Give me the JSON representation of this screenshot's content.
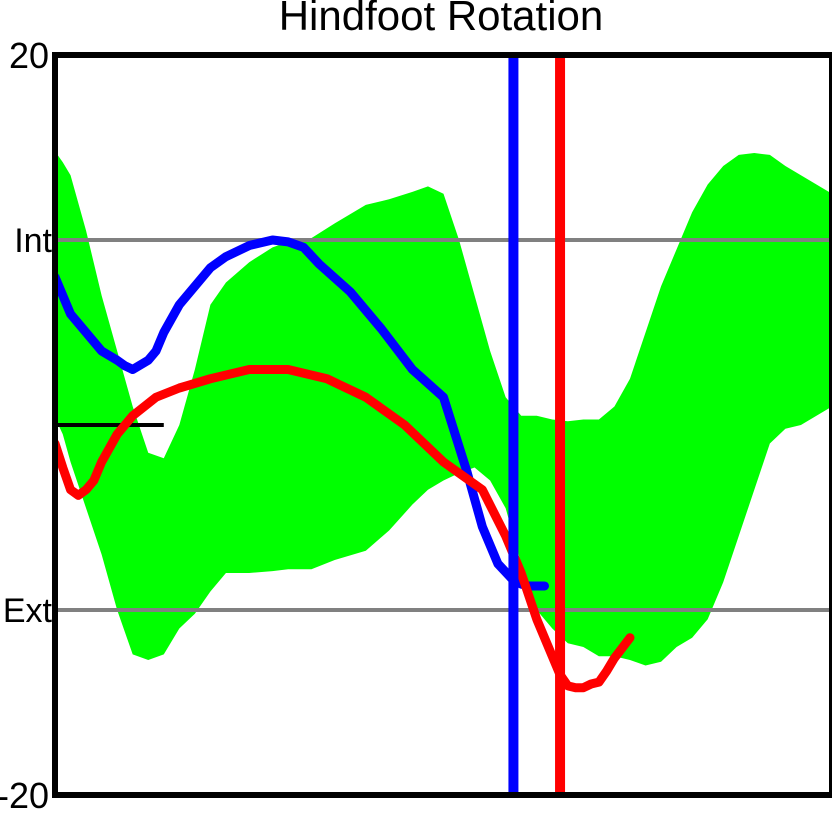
{
  "chart_data": {
    "type": "line",
    "title": "Hindfoot Rotation",
    "xlabel": "",
    "ylabel": "",
    "xlim": [
      0,
      100
    ],
    "ylim": [
      -20,
      20
    ],
    "y_ticks": [
      {
        "value": 20,
        "label": "20"
      },
      {
        "value": -20,
        "label": "-20"
      }
    ],
    "direction_labels": [
      {
        "value": 10,
        "label": "Int"
      },
      {
        "value": -10,
        "label": "Ext"
      }
    ],
    "reference_lines": [
      {
        "value": 10,
        "color": "#808080"
      },
      {
        "value": -10,
        "color": "#808080"
      }
    ],
    "zero_line": {
      "value": 0,
      "x_range": [
        0,
        14
      ],
      "color": "#000000"
    },
    "normal_band": {
      "color": "#00ff00",
      "x": [
        0,
        1,
        2,
        4,
        6,
        8,
        10,
        12,
        14,
        16,
        18,
        20,
        22,
        25,
        28,
        30,
        33,
        36,
        40,
        43,
        46,
        48,
        50,
        52,
        54,
        56,
        58,
        60,
        62,
        64,
        66,
        68,
        70,
        72,
        74,
        76,
        78,
        80,
        82,
        84,
        86,
        88,
        90,
        92,
        94,
        96,
        98,
        100
      ],
      "upper": [
        14.8,
        14.2,
        13.5,
        10.5,
        7.0,
        4.0,
        1.0,
        -1.5,
        -1.8,
        0.0,
        3.0,
        6.5,
        7.7,
        8.8,
        9.6,
        9.9,
        10.1,
        10.9,
        11.9,
        12.2,
        12.6,
        12.9,
        12.5,
        10.0,
        7.0,
        4.0,
        1.5,
        0.5,
        0.5,
        0.3,
        0.2,
        0.3,
        0.3,
        1.0,
        2.5,
        5.0,
        7.5,
        9.5,
        11.5,
        13.0,
        14.0,
        14.6,
        14.7,
        14.6,
        14.0,
        13.5,
        13.0,
        12.5
      ],
      "lower": [
        0.4,
        -0.5,
        -2.0,
        -4.5,
        -7.0,
        -10.0,
        -12.4,
        -12.7,
        -12.4,
        -11.0,
        -10.2,
        -9.0,
        -8.0,
        -8.0,
        -7.9,
        -7.8,
        -7.8,
        -7.3,
        -6.8,
        -5.7,
        -4.3,
        -3.5,
        -3.0,
        -2.6,
        -2.3,
        -3.0,
        -4.5,
        -7.5,
        -10.0,
        -11.0,
        -11.8,
        -12.0,
        -12.5,
        -12.5,
        -12.7,
        -13.0,
        -12.8,
        -12.0,
        -11.5,
        -10.5,
        -8.5,
        -6.0,
        -3.5,
        -1.0,
        -0.2,
        0.0,
        0.5,
        1.0
      ]
    },
    "series": [
      {
        "color": "#0000ff",
        "x": [
          0,
          2,
          4,
          6,
          8,
          9,
          10,
          12,
          13,
          14,
          16,
          18,
          20,
          22,
          25,
          28,
          30,
          32,
          34,
          38,
          42,
          46,
          50,
          53,
          55,
          57,
          59,
          60,
          61,
          62,
          63
        ],
        "y": [
          8.0,
          6.0,
          5.0,
          4.0,
          3.5,
          3.2,
          3.0,
          3.5,
          4.0,
          5.0,
          6.5,
          7.5,
          8.5,
          9.1,
          9.7,
          10.0,
          9.9,
          9.6,
          8.7,
          7.2,
          5.2,
          3.0,
          1.5,
          -2.5,
          -5.5,
          -7.5,
          -8.4,
          -8.6,
          -8.7,
          -8.7,
          -8.7
        ]
      },
      {
        "color": "#ff0000",
        "x": [
          0,
          1,
          2,
          3,
          4,
          5,
          6,
          8,
          10,
          13,
          16,
          20,
          25,
          30,
          35,
          40,
          45,
          50,
          55,
          58,
          60,
          62,
          64,
          65,
          66,
          67,
          68,
          69,
          70,
          71,
          72,
          74
        ],
        "y": [
          -1.0,
          -2.3,
          -3.5,
          -3.8,
          -3.5,
          -3.0,
          -2.0,
          -0.5,
          0.5,
          1.5,
          2.0,
          2.5,
          3.0,
          3.0,
          2.5,
          1.5,
          0.0,
          -2.0,
          -3.5,
          -6.0,
          -8.0,
          -10.5,
          -12.5,
          -13.5,
          -14.1,
          -14.2,
          -14.2,
          -14.0,
          -13.9,
          -13.3,
          -12.6,
          -11.5
        ]
      }
    ],
    "events": [
      {
        "x": 59,
        "color": "#0000ff"
      },
      {
        "x": 65,
        "color": "#ff0000"
      }
    ]
  }
}
